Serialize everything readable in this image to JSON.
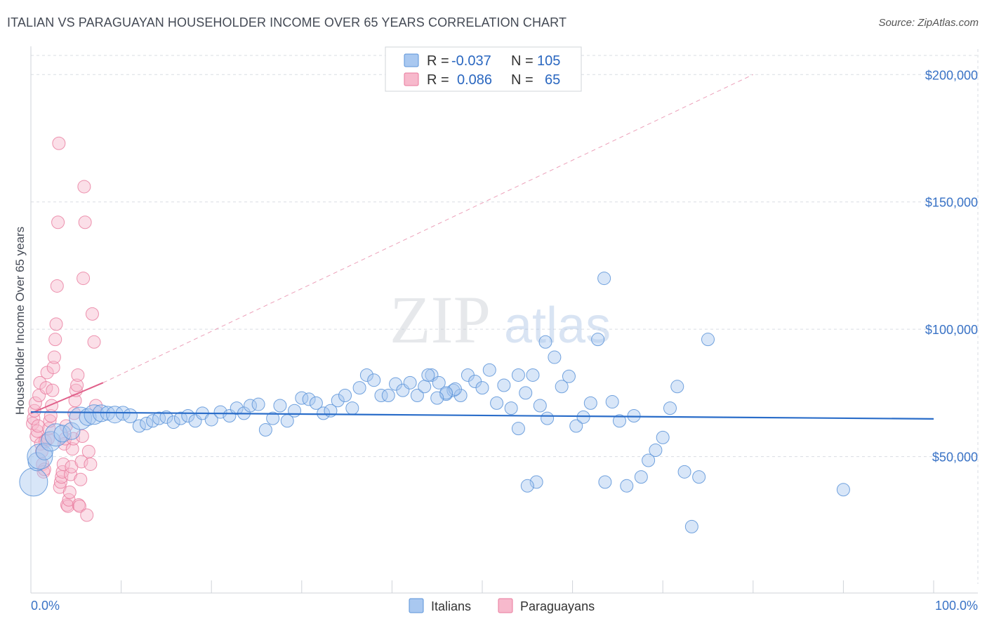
{
  "title": "ITALIAN VS PARAGUAYAN HOUSEHOLDER INCOME OVER 65 YEARS CORRELATION CHART",
  "source": "Source: ZipAtlas.com",
  "watermark": {
    "zip": "ZIP",
    "atlas": "atlas"
  },
  "colors": {
    "italians_fill": "#a9c8f0",
    "italians_stroke": "#5b93d8",
    "italians_line": "#2a6dc9",
    "paraguayans_fill": "#f7b9cc",
    "paraguayans_stroke": "#e8799c",
    "paraguayans_line": "#e0608a",
    "axis_text": "#3a73c6",
    "grid": "#d9dde3"
  },
  "legend": {
    "rows": [
      {
        "r_label": "R =",
        "r_value": "-0.037",
        "n_label": "N =",
        "n_value": "105"
      },
      {
        "r_label": "R =",
        "r_value": "0.086",
        "n_label": "N =",
        "n_value": "65"
      }
    ]
  },
  "chart_data": {
    "type": "scatter",
    "title": "ITALIAN VS PARAGUAYAN HOUSEHOLDER INCOME OVER 65 YEARS CORRELATION CHART",
    "xlabel": "",
    "ylabel": "Householder Income Over 65 years",
    "xlim": [
      0,
      100
    ],
    "ylim": [
      0,
      210000
    ],
    "x_tick_labels": [
      "0.0%",
      "100.0%"
    ],
    "y_ticks": [
      50000,
      100000,
      150000,
      200000
    ],
    "y_tick_labels": [
      "$50,000",
      "$100,000",
      "$150,000",
      "$200,000"
    ],
    "series": [
      {
        "name": "Italians",
        "r": -0.037,
        "n": 105,
        "trend": {
          "x0": 0,
          "y0": 67500,
          "x1": 100,
          "y1": 64800
        },
        "points": [
          [
            0.3,
            40000,
            20
          ],
          [
            0.7,
            48000,
            13
          ],
          [
            1.0,
            50000,
            18
          ],
          [
            1.5,
            52000,
            12
          ],
          [
            2.2,
            56000,
            14
          ],
          [
            2.8,
            58500,
            16
          ],
          [
            3.5,
            59000,
            12
          ],
          [
            4.5,
            60000,
            12
          ],
          [
            5.5,
            65000,
            16
          ],
          [
            6.3,
            65500,
            12
          ],
          [
            7.0,
            66500,
            14
          ],
          [
            7.8,
            67000,
            12
          ],
          [
            8.5,
            67000,
            10
          ],
          [
            9.3,
            66500,
            12
          ],
          [
            10.2,
            67000,
            10
          ],
          [
            11.0,
            66000,
            10
          ],
          [
            12.0,
            62000,
            9
          ],
          [
            12.8,
            63000,
            9
          ],
          [
            13.5,
            64000,
            9
          ],
          [
            14.2,
            65000,
            9
          ],
          [
            15.0,
            65500,
            9
          ],
          [
            15.8,
            63500,
            9
          ],
          [
            16.6,
            65000,
            9
          ],
          [
            17.4,
            66000,
            9
          ],
          [
            18.2,
            64000,
            9
          ],
          [
            19.0,
            67000,
            9
          ],
          [
            20.0,
            64500,
            9
          ],
          [
            21.0,
            67500,
            9
          ],
          [
            22.0,
            66000,
            9
          ],
          [
            22.8,
            69000,
            9
          ],
          [
            23.6,
            67000,
            9
          ],
          [
            24.3,
            70000,
            9
          ],
          [
            25.2,
            70500,
            9
          ],
          [
            26.0,
            60500,
            9
          ],
          [
            26.8,
            65000,
            9
          ],
          [
            27.6,
            70000,
            9
          ],
          [
            28.4,
            64000,
            9
          ],
          [
            29.2,
            68000,
            9
          ],
          [
            30.0,
            73000,
            9
          ],
          [
            30.8,
            72500,
            9
          ],
          [
            31.6,
            71000,
            9
          ],
          [
            32.4,
            67000,
            9
          ],
          [
            33.2,
            68000,
            9
          ],
          [
            34.0,
            72000,
            9
          ],
          [
            34.8,
            74000,
            9
          ],
          [
            35.6,
            69000,
            9
          ],
          [
            36.4,
            77000,
            9
          ],
          [
            37.2,
            82000,
            9
          ],
          [
            38.0,
            80000,
            9
          ],
          [
            38.8,
            74000,
            9
          ],
          [
            39.6,
            74000,
            9
          ],
          [
            40.4,
            78500,
            9
          ],
          [
            41.2,
            76000,
            9
          ],
          [
            42.0,
            79000,
            9
          ],
          [
            42.8,
            74000,
            9
          ],
          [
            43.6,
            77500,
            9
          ],
          [
            44.4,
            82000,
            9
          ],
          [
            45.2,
            79000,
            9
          ],
          [
            46.0,
            74500,
            9
          ],
          [
            46.8,
            76000,
            9
          ],
          [
            47.6,
            74000,
            9
          ],
          [
            48.4,
            82000,
            9
          ],
          [
            49.2,
            79500,
            9
          ],
          [
            50.0,
            77000,
            9
          ],
          [
            50.8,
            84000,
            9
          ],
          [
            51.6,
            71000,
            9
          ],
          [
            52.4,
            78000,
            9
          ],
          [
            53.2,
            69000,
            9
          ],
          [
            54.0,
            82000,
            9
          ],
          [
            54.8,
            75000,
            9
          ],
          [
            55.6,
            82000,
            9
          ],
          [
            56.4,
            70000,
            9
          ],
          [
            57.2,
            65000,
            9
          ],
          [
            58.0,
            89000,
            9
          ],
          [
            58.8,
            77500,
            9
          ],
          [
            59.6,
            81500,
            9
          ],
          [
            60.4,
            62000,
            9
          ],
          [
            61.2,
            65500,
            9
          ],
          [
            62.0,
            71000,
            9
          ],
          [
            62.8,
            96000,
            9
          ],
          [
            63.6,
            40000,
            9
          ],
          [
            64.4,
            71500,
            9
          ],
          [
            65.2,
            64000,
            9
          ],
          [
            66.0,
            38500,
            9
          ],
          [
            66.8,
            66000,
            9
          ],
          [
            67.6,
            42000,
            9
          ],
          [
            68.4,
            48500,
            9
          ],
          [
            69.2,
            52500,
            9
          ],
          [
            70.0,
            57500,
            9
          ],
          [
            70.8,
            69000,
            9
          ],
          [
            71.6,
            77500,
            9
          ],
          [
            72.4,
            44000,
            9
          ],
          [
            73.2,
            22500,
            9
          ],
          [
            74.0,
            42000,
            9
          ],
          [
            75.0,
            96000,
            9
          ],
          [
            57.0,
            95000,
            9
          ],
          [
            56.0,
            40000,
            9
          ],
          [
            55.0,
            38500,
            9
          ],
          [
            54.0,
            61000,
            9
          ],
          [
            47.0,
            76500,
            9
          ],
          [
            46.0,
            75000,
            9
          ],
          [
            45.0,
            73000,
            9
          ],
          [
            44.0,
            82000,
            9
          ],
          [
            90.0,
            37000,
            9
          ],
          [
            63.5,
            120000,
            9
          ]
        ]
      },
      {
        "name": "Paraguayans",
        "r": 0.086,
        "n": 65,
        "trend": {
          "x0": 0,
          "y0": 67000,
          "x1": 8,
          "y1": 79000
        },
        "trend_extended": {
          "x0": 8,
          "y0": 79000,
          "x1": 80,
          "y1": 200000
        },
        "points": [
          [
            0.2,
            63000,
            9
          ],
          [
            0.3,
            65000,
            9
          ],
          [
            0.4,
            68000,
            9
          ],
          [
            0.5,
            71000,
            9
          ],
          [
            0.6,
            58000,
            9
          ],
          [
            0.7,
            60000,
            9
          ],
          [
            0.8,
            62000,
            9
          ],
          [
            0.9,
            74000,
            9
          ],
          [
            1.0,
            79000,
            9
          ],
          [
            1.1,
            55000,
            9
          ],
          [
            1.2,
            52000,
            9
          ],
          [
            1.3,
            47000,
            9
          ],
          [
            1.4,
            44000,
            9
          ],
          [
            1.5,
            45000,
            9
          ],
          [
            1.6,
            56000,
            9
          ],
          [
            1.7,
            77000,
            9
          ],
          [
            1.8,
            83000,
            9
          ],
          [
            1.9,
            57000,
            9
          ],
          [
            2.0,
            61000,
            9
          ],
          [
            2.1,
            64000,
            9
          ],
          [
            2.2,
            66000,
            9
          ],
          [
            2.3,
            70000,
            9
          ],
          [
            2.4,
            76000,
            9
          ],
          [
            2.5,
            85000,
            9
          ],
          [
            2.6,
            89000,
            9
          ],
          [
            2.7,
            96000,
            9
          ],
          [
            2.8,
            102000,
            9
          ],
          [
            2.9,
            117000,
            9
          ],
          [
            3.0,
            142000,
            9
          ],
          [
            3.1,
            173000,
            9
          ],
          [
            3.2,
            38000,
            9
          ],
          [
            3.3,
            40000,
            9
          ],
          [
            3.4,
            42000,
            9
          ],
          [
            3.5,
            44000,
            9
          ],
          [
            3.6,
            47000,
            9
          ],
          [
            3.7,
            55000,
            9
          ],
          [
            3.8,
            57000,
            9
          ],
          [
            3.9,
            62000,
            9
          ],
          [
            4.0,
            31000,
            9
          ],
          [
            4.1,
            30500,
            9
          ],
          [
            4.2,
            33000,
            9
          ],
          [
            4.3,
            36000,
            9
          ],
          [
            4.4,
            43000,
            9
          ],
          [
            4.5,
            46000,
            9
          ],
          [
            4.6,
            53000,
            9
          ],
          [
            4.7,
            57000,
            9
          ],
          [
            4.8,
            67000,
            9
          ],
          [
            4.9,
            72000,
            9
          ],
          [
            5.0,
            76000,
            9
          ],
          [
            5.1,
            78000,
            9
          ],
          [
            5.2,
            82000,
            9
          ],
          [
            5.3,
            31000,
            9
          ],
          [
            5.4,
            30500,
            9
          ],
          [
            5.5,
            41000,
            9
          ],
          [
            5.6,
            48000,
            9
          ],
          [
            5.7,
            58000,
            9
          ],
          [
            5.8,
            120000,
            9
          ],
          [
            5.9,
            156000,
            9
          ],
          [
            6.0,
            142000,
            9
          ],
          [
            6.2,
            27000,
            9
          ],
          [
            6.4,
            52000,
            9
          ],
          [
            6.6,
            47000,
            9
          ],
          [
            6.8,
            106000,
            9
          ],
          [
            7.0,
            95000,
            9
          ],
          [
            7.2,
            70000,
            9
          ]
        ]
      }
    ]
  },
  "bottom_legend": {
    "italians": "Italians",
    "paraguayans": "Paraguayans"
  }
}
